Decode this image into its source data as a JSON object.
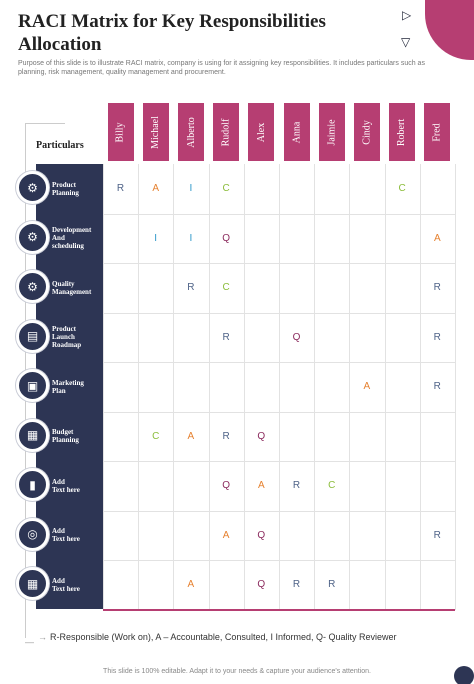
{
  "title": "RACI Matrix for Key Responsibilities Allocation",
  "subtitle": "Purpose of this slide is to illustrate RACI matrix, company is using for it assigning key responsibilities. It includes particulars such as planning, risk management, quality management and procurement.",
  "particulars_label": "Particulars",
  "people": [
    "Billy",
    "Michael",
    "Alberto",
    "Rudolf",
    "Alex",
    "Anna",
    "Jaimie",
    "Cindy",
    "Robert",
    "Fred"
  ],
  "rows": [
    {
      "label": "Product\nPlanning",
      "icon": "gear-icon",
      "cells": [
        "R",
        "A",
        "I",
        "C",
        "",
        "",
        "",
        "",
        "C",
        ""
      ]
    },
    {
      "label": "Development\nAnd\nscheduling",
      "icon": "gears-icon",
      "cells": [
        "",
        "I",
        "I",
        "Q",
        "",
        "",
        "",
        "",
        "",
        "A"
      ]
    },
    {
      "label": "Quality\nManagement",
      "icon": "settings-icon",
      "cells": [
        "",
        "",
        "R",
        "C",
        "",
        "",
        "",
        "",
        "",
        "R"
      ]
    },
    {
      "label": "Product\nLaunch\nRoadmap",
      "icon": "chart-icon",
      "cells": [
        "",
        "",
        "",
        "R",
        "",
        "Q",
        "",
        "",
        "",
        "R"
      ]
    },
    {
      "label": "Marketing\nPlan",
      "icon": "marketing-icon",
      "cells": [
        "",
        "",
        "",
        "",
        "",
        "",
        "",
        "A",
        "",
        "R"
      ]
    },
    {
      "label": "Budget\nPlanning",
      "icon": "budget-icon",
      "cells": [
        "",
        "C",
        "A",
        "R",
        "Q",
        "",
        "",
        "",
        "",
        ""
      ]
    },
    {
      "label": "Add\nText here",
      "icon": "document-icon",
      "cells": [
        "",
        "",
        "",
        "Q",
        "A",
        "R",
        "C",
        "",
        "",
        ""
      ]
    },
    {
      "label": "Add\nText here",
      "icon": "target-icon",
      "cells": [
        "",
        "",
        "",
        "A",
        "Q",
        "",
        "",
        "",
        "",
        "R"
      ]
    },
    {
      "label": "Add\nText here",
      "icon": "calendar-icon",
      "cells": [
        "",
        "",
        "A",
        "",
        "Q",
        "R",
        "R",
        "",
        "",
        ""
      ]
    }
  ],
  "legend": "R-Responsible (Work on), A – Accountable, Consulted, I Informed, Q- Quality Reviewer",
  "footer": "This slide is 100% editable. Adapt it to your needs & capture your audience's attention.",
  "colors": {
    "accent": "#b63e72",
    "panel": "#2d3554",
    "R": "#4f6388",
    "A": "#e6812f",
    "I": "#2e98c9",
    "C": "#8cbd3c",
    "Q": "#8b2a5d"
  }
}
